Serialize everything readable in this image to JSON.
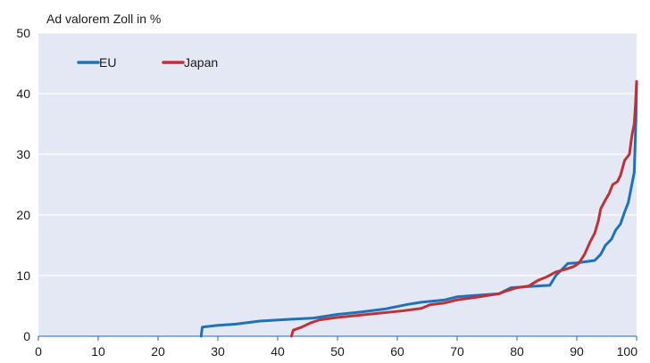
{
  "chart_data": {
    "type": "line",
    "ylabel": "Ad valorem Zoll in %",
    "xlim": [
      0,
      100
    ],
    "ylim": [
      0,
      50
    ],
    "x_ticks": [
      "0",
      "10",
      "20",
      "30",
      "40",
      "50",
      "60",
      "70",
      "80",
      "90",
      "100"
    ],
    "y_ticks": [
      "0",
      "10",
      "20",
      "30",
      "40",
      "50"
    ],
    "grid": "horizontal",
    "legend_position": "top-left",
    "background_color": "#e4e8f4",
    "series": [
      {
        "name": "EU",
        "color": "#1f72b8",
        "points": [
          [
            27.2,
            0
          ],
          [
            27.4,
            1.5
          ],
          [
            30,
            1.8
          ],
          [
            33,
            2.0
          ],
          [
            37,
            2.5
          ],
          [
            42,
            2.8
          ],
          [
            46,
            3.0
          ],
          [
            50,
            3.6
          ],
          [
            54,
            4.0
          ],
          [
            58,
            4.5
          ],
          [
            62,
            5.3
          ],
          [
            64,
            5.6
          ],
          [
            68,
            6.0
          ],
          [
            70,
            6.5
          ],
          [
            74,
            6.8
          ],
          [
            77,
            7.0
          ],
          [
            79,
            8.0
          ],
          [
            82,
            8.2
          ],
          [
            85.5,
            8.4
          ],
          [
            86.5,
            10.0
          ],
          [
            88,
            11.5
          ],
          [
            88.5,
            12.0
          ],
          [
            90,
            12.1
          ],
          [
            91.5,
            12.3
          ],
          [
            93,
            12.5
          ],
          [
            94,
            13.5
          ],
          [
            94.8,
            15.0
          ],
          [
            95.8,
            16.0
          ],
          [
            96.5,
            17.5
          ],
          [
            97.3,
            18.5
          ],
          [
            98,
            20.5
          ],
          [
            98.6,
            22.0
          ],
          [
            99.1,
            24.5
          ],
          [
            99.6,
            27.0
          ],
          [
            99.8,
            33.0
          ],
          [
            99.9,
            36.0
          ],
          [
            100,
            42.0
          ]
        ]
      },
      {
        "name": "Japan",
        "color": "#c03038",
        "points": [
          [
            42.3,
            0
          ],
          [
            42.6,
            1.0
          ],
          [
            44,
            1.5
          ],
          [
            45.5,
            2.2
          ],
          [
            47,
            2.7
          ],
          [
            50,
            3.1
          ],
          [
            53,
            3.4
          ],
          [
            57,
            3.8
          ],
          [
            61,
            4.2
          ],
          [
            64,
            4.6
          ],
          [
            65.5,
            5.2
          ],
          [
            68,
            5.5
          ],
          [
            70,
            6.0
          ],
          [
            73,
            6.4
          ],
          [
            75,
            6.7
          ],
          [
            77,
            7.0
          ],
          [
            78,
            7.4
          ],
          [
            80,
            8.0
          ],
          [
            82,
            8.3
          ],
          [
            83.5,
            9.2
          ],
          [
            85,
            9.8
          ],
          [
            86.5,
            10.6
          ],
          [
            88,
            11.0
          ],
          [
            89.5,
            11.5
          ],
          [
            90.3,
            12.0
          ],
          [
            91.3,
            13.5
          ],
          [
            92.2,
            15.5
          ],
          [
            93,
            17.0
          ],
          [
            93.6,
            19.0
          ],
          [
            94,
            21.0
          ],
          [
            94.8,
            22.5
          ],
          [
            95.4,
            23.5
          ],
          [
            96,
            25.0
          ],
          [
            96.8,
            25.5
          ],
          [
            97.3,
            26.5
          ],
          [
            98,
            29.0
          ],
          [
            98.8,
            30.0
          ],
          [
            99.2,
            33.0
          ],
          [
            99.6,
            35.0
          ],
          [
            99.8,
            38.0
          ],
          [
            100,
            42.0
          ]
        ]
      }
    ]
  }
}
